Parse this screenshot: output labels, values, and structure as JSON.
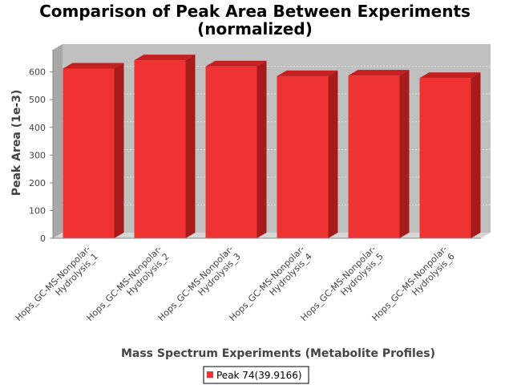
{
  "chart_data": {
    "type": "bar",
    "title_lines": [
      "Comparison of Peak Area Between Experiments",
      "(normalized)"
    ],
    "xlabel": "Mass Spectrum Experiments (Metabolite Profiles)",
    "ylabel": "Peak Area (1e-3)",
    "ylim": [
      0,
      680
    ],
    "yticks": [
      "0",
      "100",
      "200",
      "300",
      "400",
      "500",
      "600"
    ],
    "categories": [
      [
        "Hops_GC-MS-Nonpolar-",
        "Hydrolysis_1"
      ],
      [
        "Hops_GC-MS-Nonpolar-",
        "Hydrolysis_2"
      ],
      [
        "Hops_GC-MS-Nonpolar-",
        "Hydrolysis_3"
      ],
      [
        "Hops_GC-MS-Nonpolar-",
        "Hydrolysis_4"
      ],
      [
        "Hops_GC-MS-Nonpolar-",
        "Hydrolysis_5"
      ],
      [
        "Hops_GC-MS-Nonpolar-",
        "Hydrolysis_6"
      ]
    ],
    "series": [
      {
        "name": "Peak 74(39.9166)",
        "values": [
          612,
          642,
          620,
          585,
          587,
          578
        ]
      }
    ],
    "grid": true,
    "legend": "bottom",
    "colors": {
      "bar_front": "#ef3232",
      "bar_top": "#c42020",
      "bar_side": "#a61c1c",
      "plot_back": "#c0c0c0",
      "plot_floor": "#d6d6d6",
      "plot_wall": "#a8a8a8"
    }
  }
}
